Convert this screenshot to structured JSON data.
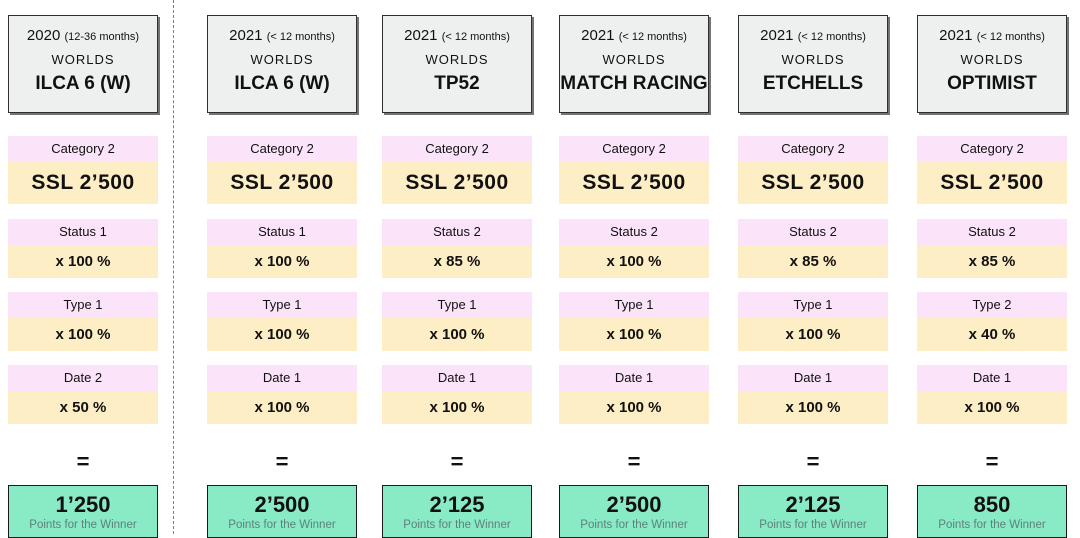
{
  "divider": {
    "style": "dashed",
    "color": "#7f7f7f"
  },
  "colors": {
    "header_bg": "#eef0ef",
    "label_bg": "#fbe3fa",
    "value_bg": "#fdeec6",
    "result_bg": "#89eac6",
    "caption_color": "#5e807b"
  },
  "columns": [
    {
      "year": "2020",
      "period": "(12-36 months)",
      "level": "WORLDS",
      "boat_class": "ILCA 6 (W)",
      "factors": [
        {
          "label": "Category 2",
          "value": "SSL 2’500"
        },
        {
          "label": "Status 1",
          "value": "x 100 %"
        },
        {
          "label": "Type 1",
          "value": "x 100 %"
        },
        {
          "label": "Date 2",
          "value": "x 50 %"
        }
      ],
      "equals_sign": "=",
      "points": "1’250",
      "points_caption": "Points for the Winner"
    },
    {
      "year": "2021",
      "period": "(< 12 months)",
      "level": "WORLDS",
      "boat_class": "ILCA 6 (W)",
      "factors": [
        {
          "label": "Category 2",
          "value": "SSL 2’500"
        },
        {
          "label": "Status 1",
          "value": "x 100 %"
        },
        {
          "label": "Type 1",
          "value": "x 100 %"
        },
        {
          "label": "Date 1",
          "value": "x 100 %"
        }
      ],
      "equals_sign": "=",
      "points": "2’500",
      "points_caption": "Points for the Winner"
    },
    {
      "year": "2021",
      "period": "(< 12 months)",
      "level": "WORLDS",
      "boat_class": "TP52",
      "factors": [
        {
          "label": "Category 2",
          "value": "SSL 2’500"
        },
        {
          "label": "Status 2",
          "value": "x 85 %"
        },
        {
          "label": "Type 1",
          "value": "x 100 %"
        },
        {
          "label": "Date 1",
          "value": "x 100 %"
        }
      ],
      "equals_sign": "=",
      "points": "2’125",
      "points_caption": "Points for the Winner"
    },
    {
      "year": "2021",
      "period": "(< 12 months)",
      "level": "WORLDS",
      "boat_class": "MATCH RACING",
      "factors": [
        {
          "label": "Category 2",
          "value": "SSL 2’500"
        },
        {
          "label": "Status 2",
          "value": "x 100 %"
        },
        {
          "label": "Type 1",
          "value": "x 100 %"
        },
        {
          "label": "Date 1",
          "value": "x 100 %"
        }
      ],
      "equals_sign": "=",
      "points": "2’500",
      "points_caption": "Points for the Winner"
    },
    {
      "year": "2021",
      "period": "(< 12 months)",
      "level": "WORLDS",
      "boat_class": "ETCHELLS",
      "factors": [
        {
          "label": "Category 2",
          "value": "SSL 2’500"
        },
        {
          "label": "Status 2",
          "value": "x 85 %"
        },
        {
          "label": "Type 1",
          "value": "x 100 %"
        },
        {
          "label": "Date 1",
          "value": "x 100 %"
        }
      ],
      "equals_sign": "=",
      "points": "2’125",
      "points_caption": "Points for the Winner"
    },
    {
      "year": "2021",
      "period": "(< 12 months)",
      "level": "WORLDS",
      "boat_class": "OPTIMIST",
      "factors": [
        {
          "label": "Category 2",
          "value": "SSL 2’500"
        },
        {
          "label": "Status 2",
          "value": "x 85 %"
        },
        {
          "label": "Type 2",
          "value": "x 40 %"
        },
        {
          "label": "Date 1",
          "value": "x 100 %"
        }
      ],
      "equals_sign": "=",
      "points": "850",
      "points_caption": "Points for the Winner"
    }
  ]
}
